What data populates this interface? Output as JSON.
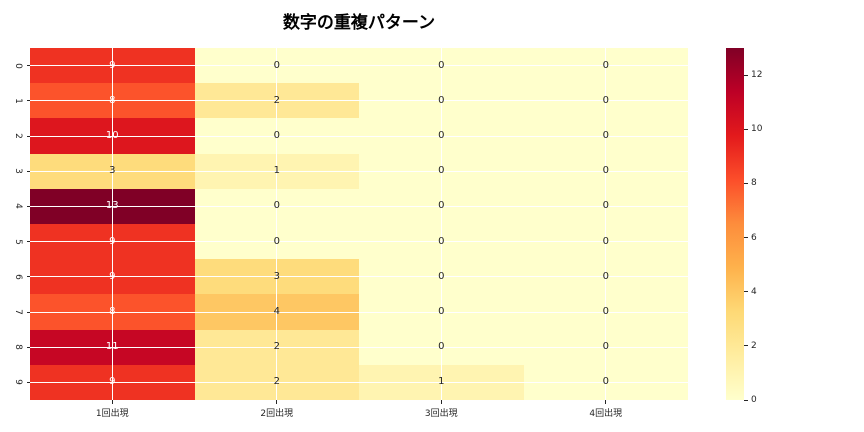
{
  "chart_data": {
    "type": "heatmap",
    "title": "数字の重複パターン",
    "x_categories": [
      "1回出現",
      "2回出現",
      "3回出現",
      "4回出現"
    ],
    "y_categories": [
      "0",
      "1",
      "2",
      "3",
      "4",
      "5",
      "6",
      "7",
      "8",
      "9"
    ],
    "values": [
      [
        9,
        0,
        0,
        0
      ],
      [
        8,
        2,
        0,
        0
      ],
      [
        10,
        0,
        0,
        0
      ],
      [
        3,
        1,
        0,
        0
      ],
      [
        13,
        0,
        0,
        0
      ],
      [
        9,
        0,
        0,
        0
      ],
      [
        9,
        3,
        0,
        0
      ],
      [
        8,
        4,
        0,
        0
      ],
      [
        11,
        2,
        0,
        0
      ],
      [
        9,
        2,
        1,
        0
      ],
      [
        0,
        0,
        0,
        0
      ]
    ],
    "rows_shown": 10,
    "vmin": 0,
    "vmax": 13,
    "colormap": "YlOrRd",
    "colormap_anchors": [
      "#ffffcc",
      "#ffeda0",
      "#fed976",
      "#feb24c",
      "#fd8d3c",
      "#fc4e2a",
      "#e31a1c",
      "#bd0026",
      "#800026"
    ],
    "colorbar_ticks": [
      0,
      2,
      4,
      6,
      8,
      10,
      12
    ],
    "grid": true,
    "grid_color": "#ffffff",
    "annotation_dark_color": "#262626",
    "annotation_light_color": "#ffffff",
    "legend_position": "right-colorbar"
  }
}
